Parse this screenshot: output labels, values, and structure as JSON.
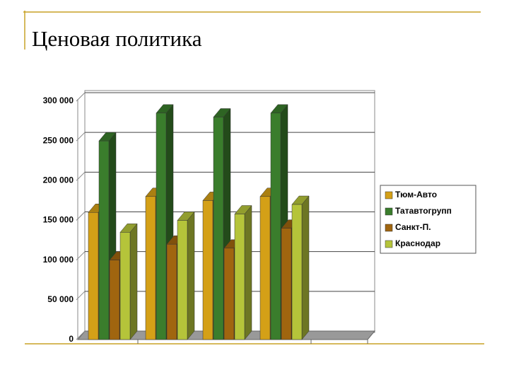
{
  "slide_title": "Ценовая политика",
  "chart_data": {
    "type": "bar",
    "categories": [
      null,
      null,
      null,
      null
    ],
    "series": [
      {
        "name": "Тюм-Авто",
        "color": "#d4a017",
        "values": [
          160000,
          180000,
          175000,
          180000
        ]
      },
      {
        "name": "Татавтогрупп",
        "color": "#3a7d2c",
        "values": [
          250000,
          285000,
          280000,
          285000
        ]
      },
      {
        "name": "Санкт-П.",
        "color": "#a0650f",
        "values": [
          100000,
          120000,
          115000,
          140000
        ]
      },
      {
        "name": "Краснодар",
        "color": "#b5c43a",
        "values": [
          135000,
          150000,
          158000,
          170000
        ]
      }
    ],
    "ylim": [
      0,
      300000
    ],
    "yticks": [
      0,
      {
        "value": 50000,
        "label": "50 000"
      },
      {
        "value": 100000,
        "label": "100 000"
      },
      {
        "value": 150000,
        "label": "150 000"
      },
      {
        "value": 200000,
        "label": "200 000"
      },
      {
        "value": 250000,
        "label": "250 000"
      },
      {
        "value": 300000,
        "label": "300 000"
      }
    ],
    "grid": true,
    "legend": "right"
  }
}
